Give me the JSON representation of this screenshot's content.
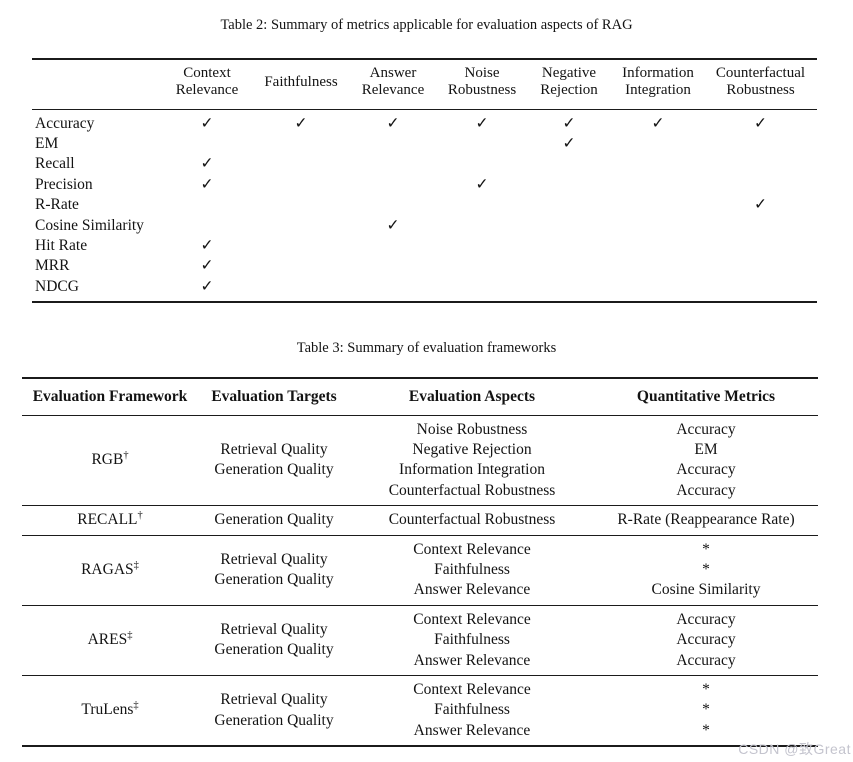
{
  "watermark": "CSDN @致Great",
  "check_glyph": "✓",
  "table2": {
    "caption": "Table 2: Summary of metrics applicable for evaluation aspects of RAG",
    "columns": [
      "Context Relevance",
      "Faithfulness",
      "Answer Relevance",
      "Noise Robustness",
      "Negative Rejection",
      "Information Integration",
      "Counterfactual Robustness"
    ],
    "rows": [
      {
        "metric": "Accuracy",
        "checks": [
          1,
          1,
          1,
          1,
          1,
          1,
          1
        ]
      },
      {
        "metric": "EM",
        "checks": [
          0,
          0,
          0,
          0,
          1,
          0,
          0
        ]
      },
      {
        "metric": "Recall",
        "checks": [
          1,
          0,
          0,
          0,
          0,
          0,
          0
        ]
      },
      {
        "metric": "Precision",
        "checks": [
          1,
          0,
          0,
          1,
          0,
          0,
          0
        ]
      },
      {
        "metric": "R-Rate",
        "checks": [
          0,
          0,
          0,
          0,
          0,
          0,
          1
        ]
      },
      {
        "metric": "Cosine Similarity",
        "checks": [
          0,
          0,
          1,
          0,
          0,
          0,
          0
        ]
      },
      {
        "metric": "Hit Rate",
        "checks": [
          1,
          0,
          0,
          0,
          0,
          0,
          0
        ]
      },
      {
        "metric": "MRR",
        "checks": [
          1,
          0,
          0,
          0,
          0,
          0,
          0
        ]
      },
      {
        "metric": "NDCG",
        "checks": [
          1,
          0,
          0,
          0,
          0,
          0,
          0
        ]
      }
    ]
  },
  "table3": {
    "caption": "Table 3: Summary of evaluation frameworks",
    "columns": [
      "Evaluation Framework",
      "Evaluation Targets",
      "Evaluation Aspects",
      "Quantitative Metrics"
    ],
    "rows": [
      {
        "framework": "RGB",
        "marker": "†",
        "targets": [
          "Retrieval Quality",
          "Generation Quality"
        ],
        "aspects": [
          "Noise Robustness",
          "Negative Rejection",
          "Information Integration",
          "Counterfactual Robustness"
        ],
        "metrics": [
          "Accuracy",
          "EM",
          "Accuracy",
          "Accuracy"
        ]
      },
      {
        "framework": "RECALL",
        "marker": "†",
        "targets": [
          "Generation Quality"
        ],
        "aspects": [
          "Counterfactual Robustness"
        ],
        "metrics": [
          "R-Rate (Reappearance Rate)"
        ]
      },
      {
        "framework": "RAGAS",
        "marker": "‡",
        "targets": [
          "Retrieval Quality",
          "Generation Quality"
        ],
        "aspects": [
          "Context Relevance",
          "Faithfulness",
          "Answer Relevance"
        ],
        "metrics": [
          "*",
          "*",
          "Cosine Similarity"
        ]
      },
      {
        "framework": "ARES",
        "marker": "‡",
        "targets": [
          "Retrieval Quality",
          "Generation Quality"
        ],
        "aspects": [
          "Context Relevance",
          "Faithfulness",
          "Answer Relevance"
        ],
        "metrics": [
          "Accuracy",
          "Accuracy",
          "Accuracy"
        ]
      },
      {
        "framework": "TruLens",
        "marker": "‡",
        "targets": [
          "Retrieval Quality",
          "Generation Quality"
        ],
        "aspects": [
          "Context Relevance",
          "Faithfulness",
          "Answer Relevance"
        ],
        "metrics": [
          "*",
          "*",
          "*"
        ]
      }
    ]
  }
}
